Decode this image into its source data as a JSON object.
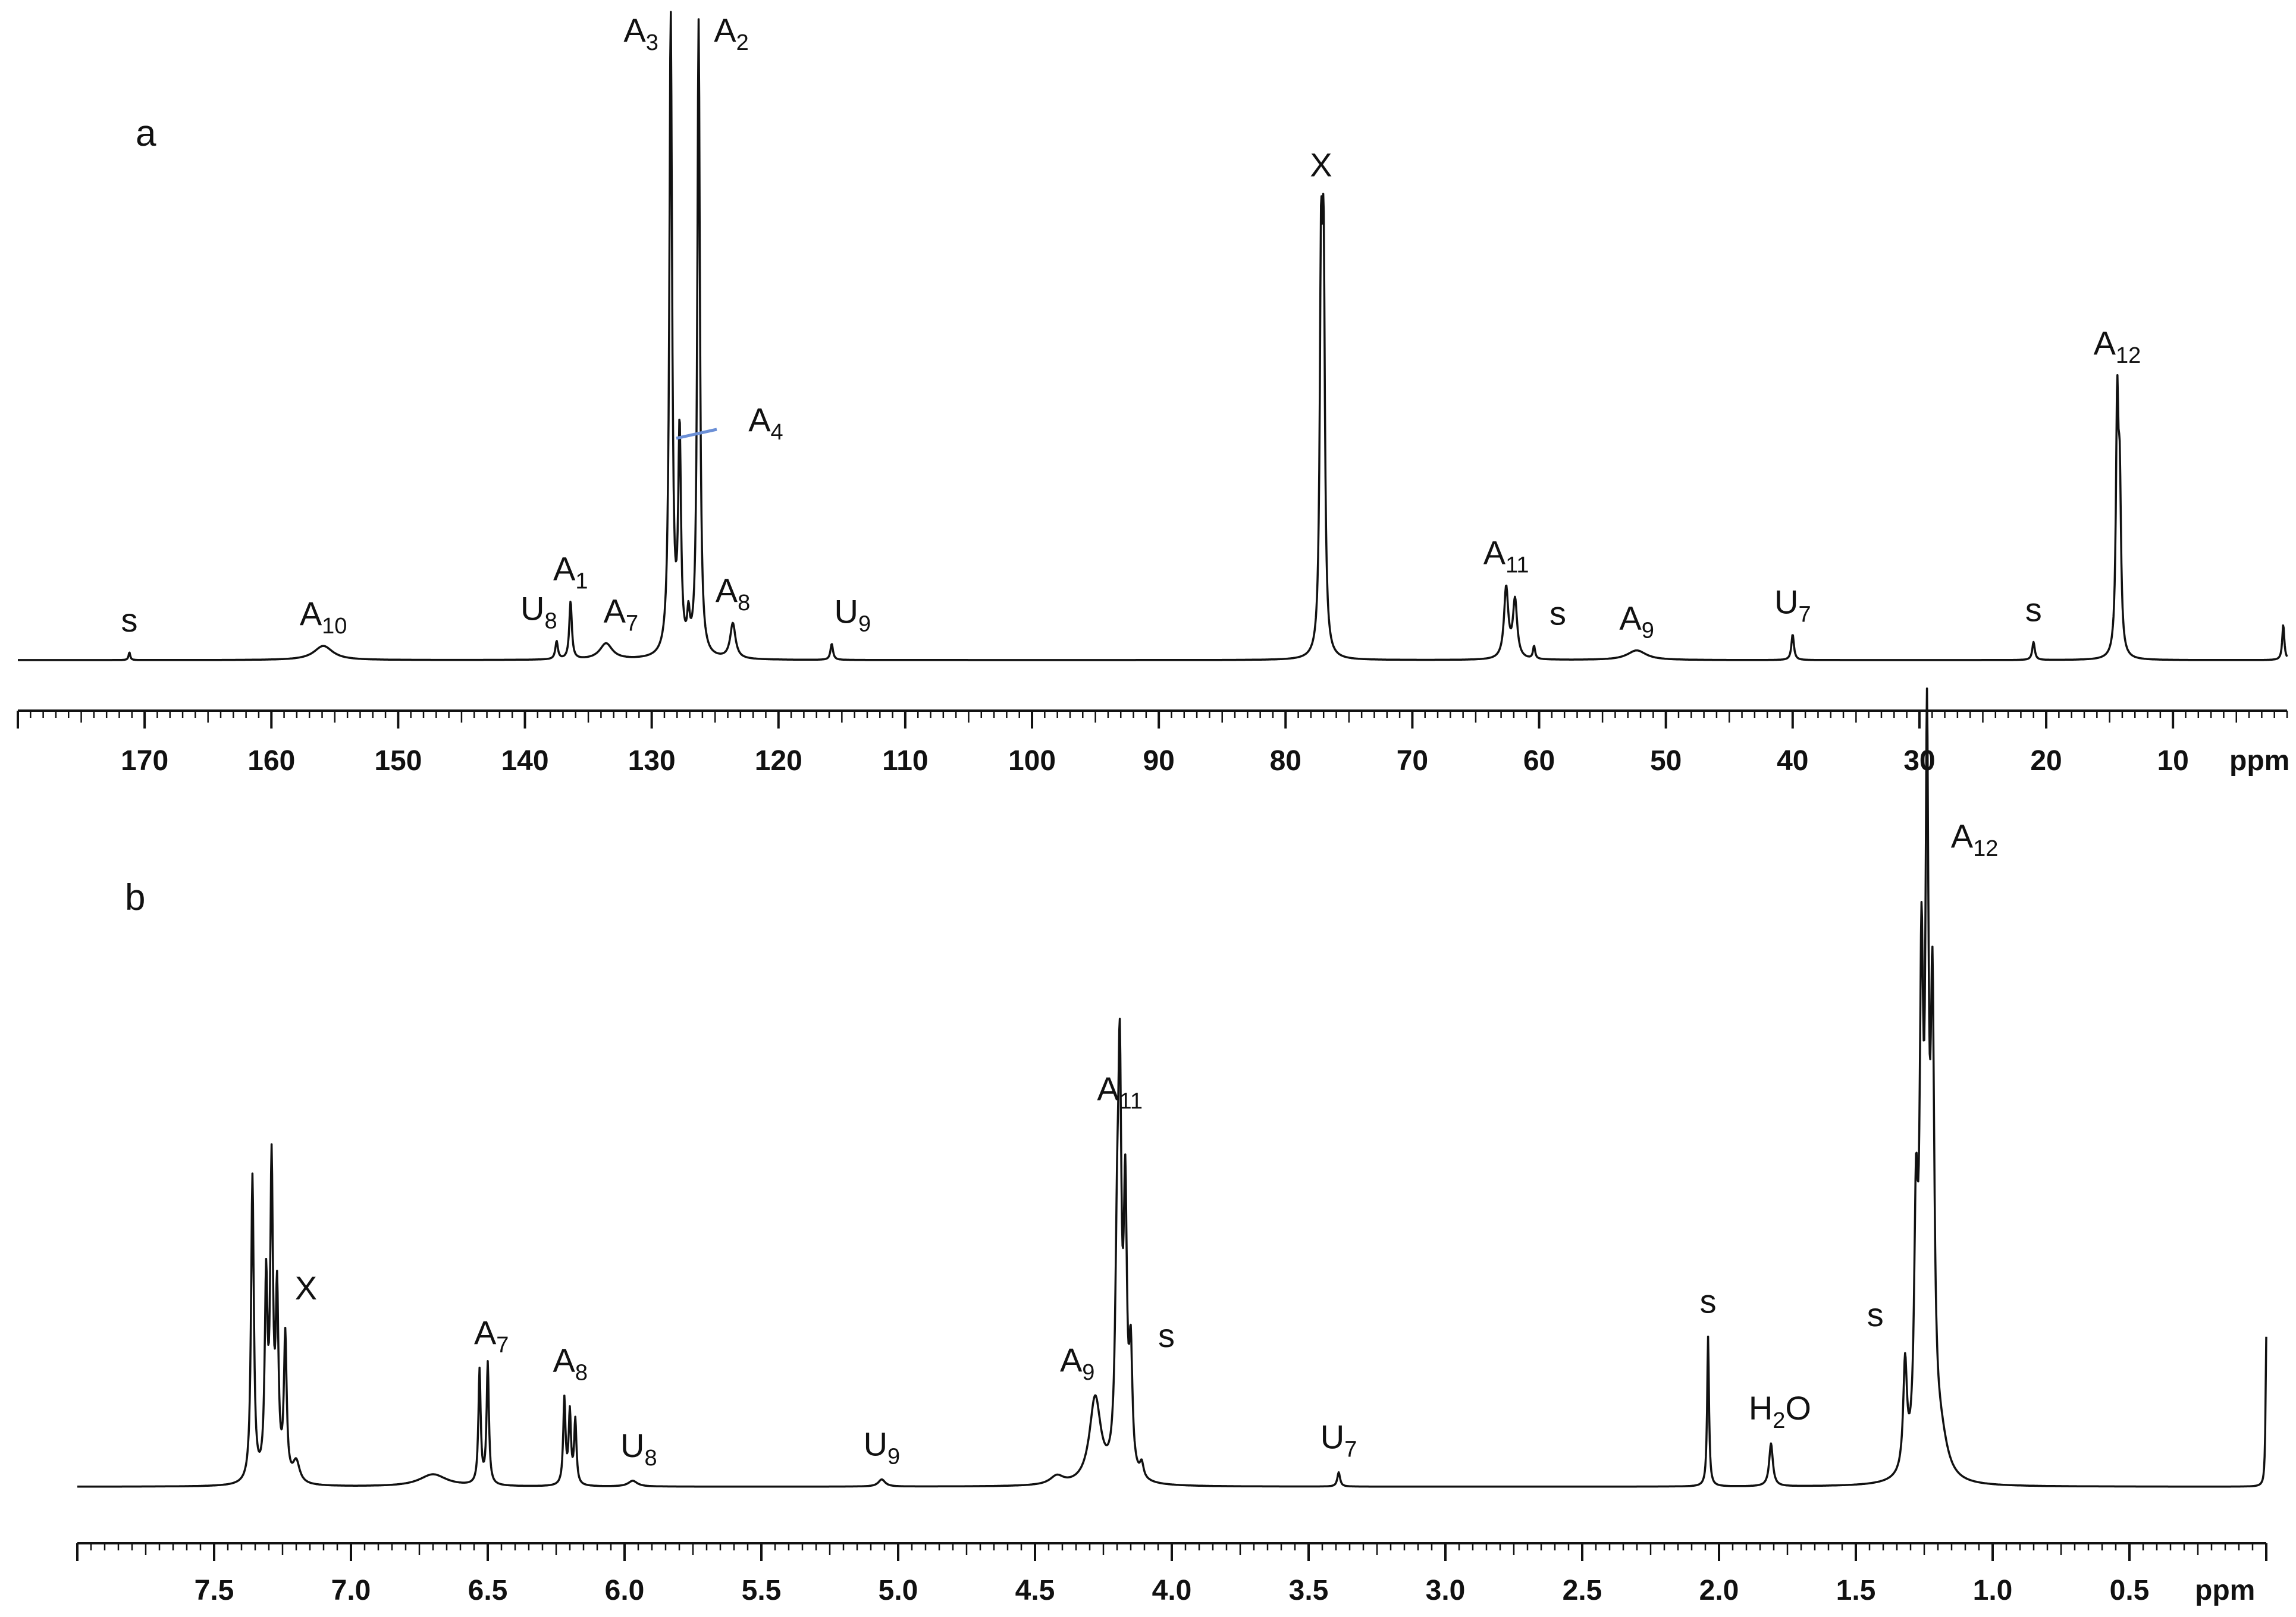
{
  "chart_data": [
    {
      "type": "line",
      "panel": "a",
      "xlabel": "ppm",
      "xlim": [
        180,
        1
      ],
      "x_reversed": true,
      "ticks": [
        170,
        160,
        150,
        140,
        130,
        120,
        110,
        100,
        90,
        80,
        70,
        60,
        50,
        40,
        30,
        20,
        10
      ],
      "grid": false,
      "colors": {
        "trace": "#111111",
        "leader": "#6b8fd6"
      },
      "peaks": [
        {
          "ppm": 171.2,
          "height": 0.012,
          "width": 0.08,
          "label": "s"
        },
        {
          "ppm": 155.9,
          "height": 0.022,
          "width": 0.9,
          "label": "A",
          "sub": "10"
        },
        {
          "ppm": 137.5,
          "height": 0.028,
          "width": 0.12,
          "label": "U",
          "sub": "8"
        },
        {
          "ppm": 136.4,
          "height": 0.09,
          "width": 0.12,
          "label": "A",
          "sub": "1"
        },
        {
          "ppm": 133.6,
          "height": 0.025,
          "width": 0.6,
          "label": "A",
          "sub": "7"
        },
        {
          "ppm": 128.5,
          "height": 1.0,
          "width": 0.13,
          "label": "A",
          "sub": "3"
        },
        {
          "ppm": 127.8,
          "height": 0.34,
          "width": 0.13
        },
        {
          "ppm": 126.3,
          "height": 0.99,
          "width": 0.12,
          "label": "A",
          "sub": "2"
        },
        {
          "ppm": 127.1,
          "height": 0.05,
          "width": 0.12,
          "label": "A",
          "sub": "4"
        },
        {
          "ppm": 123.6,
          "height": 0.055,
          "width": 0.25,
          "label": "A",
          "sub": "8"
        },
        {
          "ppm": 115.8,
          "height": 0.025,
          "width": 0.12,
          "label": "U",
          "sub": "9"
        },
        {
          "ppm": 77.2,
          "height": 0.57,
          "width": 0.12,
          "label": "X"
        },
        {
          "ppm": 77.0,
          "height": 0.57,
          "width": 0.12
        },
        {
          "ppm": 62.6,
          "height": 0.11,
          "width": 0.2,
          "label": "A",
          "sub": "11"
        },
        {
          "ppm": 61.9,
          "height": 0.09,
          "width": 0.2
        },
        {
          "ppm": 60.4,
          "height": 0.02,
          "width": 0.1,
          "label": "s"
        },
        {
          "ppm": 52.3,
          "height": 0.015,
          "width": 0.9,
          "label": "A",
          "sub": "9"
        },
        {
          "ppm": 40.0,
          "height": 0.04,
          "width": 0.12,
          "label": "U",
          "sub": "7"
        },
        {
          "ppm": 21.0,
          "height": 0.028,
          "width": 0.12,
          "label": "s"
        },
        {
          "ppm": 14.4,
          "height": 0.38,
          "width": 0.12,
          "label": "A",
          "sub": "12"
        },
        {
          "ppm": 14.2,
          "height": 0.24,
          "width": 0.12
        },
        {
          "ppm": 1.3,
          "height": 0.055,
          "width": 0.1
        }
      ]
    },
    {
      "type": "line",
      "panel": "b",
      "xlabel": "ppm",
      "xlim": [
        8.0,
        0.0
      ],
      "x_reversed": true,
      "ticks": [
        7.5,
        7.0,
        6.5,
        6.0,
        5.5,
        5.0,
        4.5,
        4.0,
        3.5,
        3.0,
        2.5,
        2.0,
        1.5,
        1.0,
        0.5
      ],
      "tick_labels": [
        "7.5",
        "7.0",
        "6.5",
        "6.0",
        "5.5",
        "5.0",
        "4.5",
        "4.0",
        "3.5",
        "3.0",
        "2.5",
        "2.0",
        "1.5",
        "1.0",
        "0.5"
      ],
      "grid": false,
      "colors": {
        "trace": "#111111"
      },
      "peaks": [
        {
          "ppm": 7.36,
          "height": 0.43,
          "width": 0.006,
          "label": "X"
        },
        {
          "ppm": 7.31,
          "height": 0.27,
          "width": 0.006
        },
        {
          "ppm": 7.29,
          "height": 0.43,
          "width": 0.006
        },
        {
          "ppm": 7.27,
          "height": 0.25,
          "width": 0.006
        },
        {
          "ppm": 7.24,
          "height": 0.2,
          "width": 0.006
        },
        {
          "ppm": 7.2,
          "height": 0.03,
          "width": 0.015
        },
        {
          "ppm": 6.7,
          "height": 0.017,
          "width": 0.06
        },
        {
          "ppm": 6.53,
          "height": 0.16,
          "width": 0.005,
          "label": "A",
          "sub": "7"
        },
        {
          "ppm": 6.5,
          "height": 0.17,
          "width": 0.005
        },
        {
          "ppm": 6.22,
          "height": 0.12,
          "width": 0.005,
          "label": "A",
          "sub": "8"
        },
        {
          "ppm": 6.2,
          "height": 0.1,
          "width": 0.005
        },
        {
          "ppm": 6.18,
          "height": 0.09,
          "width": 0.005
        },
        {
          "ppm": 5.97,
          "height": 0.008,
          "width": 0.02,
          "label": "U",
          "sub": "8"
        },
        {
          "ppm": 5.06,
          "height": 0.01,
          "width": 0.015,
          "label": "U",
          "sub": "9"
        },
        {
          "ppm": 4.42,
          "height": 0.012,
          "width": 0.03
        },
        {
          "ppm": 4.28,
          "height": 0.12,
          "width": 0.025,
          "label": "A",
          "sub": "9"
        },
        {
          "ppm": 4.2,
          "height": 0.26,
          "width": 0.008
        },
        {
          "ppm": 4.19,
          "height": 0.5,
          "width": 0.007,
          "label": "A",
          "sub": "11"
        },
        {
          "ppm": 4.17,
          "height": 0.37,
          "width": 0.007
        },
        {
          "ppm": 4.15,
          "height": 0.16,
          "width": 0.007,
          "label": "s"
        },
        {
          "ppm": 4.11,
          "height": 0.02,
          "width": 0.008
        },
        {
          "ppm": 3.39,
          "height": 0.02,
          "width": 0.006,
          "label": "U",
          "sub": "7"
        },
        {
          "ppm": 2.04,
          "height": 0.21,
          "width": 0.004,
          "label": "s"
        },
        {
          "ppm": 1.81,
          "height": 0.06,
          "width": 0.008,
          "label": "H",
          "sub": "2",
          "suffix": "O"
        },
        {
          "ppm": 1.32,
          "height": 0.15,
          "width": 0.008,
          "label": "s"
        },
        {
          "ppm": 1.28,
          "height": 0.33,
          "width": 0.008
        },
        {
          "ppm": 1.26,
          "height": 0.64,
          "width": 0.008
        },
        {
          "ppm": 1.24,
          "height": 0.92,
          "width": 0.007,
          "label": "A",
          "sub": "12"
        },
        {
          "ppm": 1.22,
          "height": 0.6,
          "width": 0.008
        },
        {
          "ppm": 1.19,
          "height": 0.05,
          "width": 0.03
        },
        {
          "ppm": 0.0,
          "height": 0.21,
          "width": 0.003
        }
      ]
    }
  ]
}
